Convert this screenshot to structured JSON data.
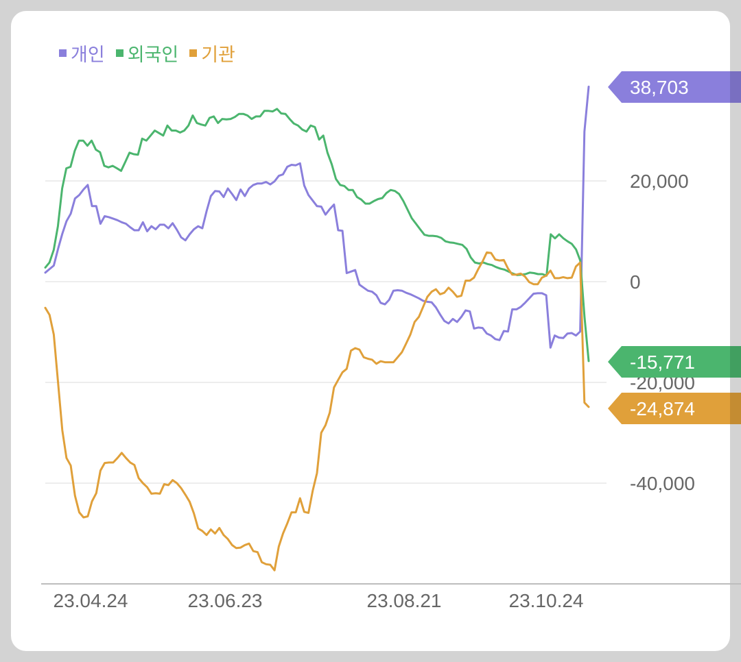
{
  "chart_data": {
    "type": "line",
    "x_ticks": [
      "23.04.24",
      "23.06.23",
      "23.08.21",
      "23.10.24"
    ],
    "y_ticks": [
      "20,000",
      "0",
      "-20,000",
      "-40,000"
    ],
    "y_tick_values": [
      20000,
      0,
      -20000,
      -40000
    ],
    "ylim": [
      -59000,
      41000
    ],
    "grid": true,
    "legend_position": "top-left",
    "series": [
      {
        "name": "개인",
        "color": "#8a7fdc",
        "last_label": "38,703",
        "last_value": 38703,
        "values": [
          1800,
          2500,
          3200,
          6500,
          9500,
          12000,
          13500,
          16500,
          17200,
          18300,
          19200,
          15000,
          15000,
          11500,
          13000,
          12800,
          12500,
          12200,
          11800,
          11500,
          10800,
          10200,
          10200,
          11800,
          10000,
          11000,
          10400,
          11300,
          11300,
          10600,
          11600,
          10300,
          8800,
          8200,
          9400,
          10400,
          11000,
          10600,
          14000,
          17000,
          18000,
          17900,
          16800,
          18500,
          17400,
          16200,
          18300,
          17000,
          18500,
          19200,
          19500,
          19500,
          19800,
          19300,
          19900,
          21000,
          21300,
          22800,
          23200,
          23100,
          23500,
          19100,
          17200,
          16100,
          15000,
          14900,
          13300,
          14400,
          15300,
          10200,
          10100,
          1700,
          2000,
          2300,
          -600,
          -1200,
          -1800,
          -2000,
          -2700,
          -4200,
          -4500,
          -3600,
          -1800,
          -1700,
          -1800,
          -2200,
          -2500,
          -2900,
          -3300,
          -3800,
          -4000,
          -4100,
          -5100,
          -6500,
          -7800,
          -8300,
          -7400,
          -8000,
          -7000,
          -5700,
          -5900,
          -9300,
          -9100,
          -9200,
          -10300,
          -10700,
          -11400,
          -11600,
          -9800,
          -9900,
          -5500,
          -5500,
          -5000,
          -4200,
          -3300,
          -2400,
          -2300,
          -2300,
          -2700,
          -13100,
          -10700,
          -11100,
          -11200,
          -10300,
          -10200,
          -10700,
          -9900,
          29800,
          38703
        ]
      },
      {
        "name": "외국인",
        "color": "#4bb56e",
        "last_label": "-15,771",
        "last_value": -15771,
        "values": [
          2800,
          3800,
          6300,
          11000,
          18500,
          22500,
          22800,
          26000,
          28000,
          28000,
          27000,
          28000,
          26200,
          25700,
          23000,
          22700,
          23000,
          22500,
          22000,
          23800,
          25600,
          25300,
          25200,
          28400,
          28000,
          29000,
          30000,
          29500,
          29000,
          31000,
          30000,
          30000,
          29600,
          30000,
          31000,
          33000,
          31500,
          31200,
          31000,
          32500,
          32800,
          31500,
          32300,
          32200,
          32300,
          32700,
          33300,
          33300,
          33000,
          32300,
          32800,
          32800,
          33900,
          33900,
          33800,
          34300,
          33400,
          33300,
          32300,
          31400,
          31000,
          30200,
          29800,
          31000,
          30700,
          28200,
          29000,
          25600,
          23300,
          20400,
          19200,
          19000,
          18200,
          18200,
          16800,
          16300,
          15500,
          15500,
          16000,
          16400,
          16600,
          17600,
          18200,
          18000,
          17400,
          16000,
          14300,
          12600,
          11500,
          10400,
          9300,
          9100,
          9100,
          9000,
          8700,
          8000,
          7800,
          7700,
          7500,
          7300,
          6500,
          4800,
          3800,
          3600,
          3800,
          3500,
          3300,
          2900,
          2600,
          2400,
          2000,
          1600,
          1300,
          1400,
          1500,
          1800,
          1700,
          1500,
          1500,
          1200,
          9400,
          8600,
          9400,
          8600,
          8000,
          7500,
          6400,
          4200,
          -7000,
          -15771
        ]
      },
      {
        "name": "기관",
        "color": "#e0a03a",
        "last_label": "-24,874",
        "last_value": -24874,
        "values": [
          -5200,
          -6600,
          -10500,
          -20000,
          -29500,
          -35000,
          -36500,
          -42500,
          -45800,
          -46800,
          -46600,
          -43600,
          -42000,
          -37500,
          -36000,
          -35900,
          -35900,
          -35000,
          -34000,
          -35000,
          -35900,
          -36400,
          -39000,
          -40000,
          -40800,
          -42100,
          -42000,
          -42100,
          -40200,
          -40400,
          -39400,
          -40000,
          -41000,
          -42300,
          -43700,
          -46000,
          -49000,
          -49500,
          -50300,
          -49200,
          -50000,
          -48900,
          -50300,
          -51100,
          -52300,
          -52900,
          -52800,
          -52300,
          -52000,
          -53500,
          -53700,
          -55700,
          -56100,
          -56200,
          -57300,
          -52600,
          -50000,
          -48000,
          -45800,
          -45800,
          -43000,
          -45700,
          -45900,
          -41500,
          -38000,
          -30000,
          -28500,
          -26000,
          -21000,
          -19500,
          -18000,
          -17300,
          -13700,
          -13200,
          -13500,
          -15000,
          -15300,
          -15500,
          -16300,
          -15800,
          -16000,
          -16000,
          -16000,
          -15000,
          -14000,
          -12300,
          -10500,
          -8000,
          -7000,
          -5000,
          -3000,
          -2000,
          -1500,
          -2500,
          -2200,
          -1200,
          -2000,
          -3000,
          -2800,
          200,
          200,
          800,
          2500,
          4000,
          5800,
          5700,
          4400,
          4200,
          4300,
          2600,
          1400,
          1400,
          1600,
          1000,
          -100,
          -500,
          -500,
          800,
          1200,
          2200,
          700,
          700,
          900,
          700,
          800,
          3000,
          3800,
          -24000,
          -24874
        ]
      }
    ]
  }
}
